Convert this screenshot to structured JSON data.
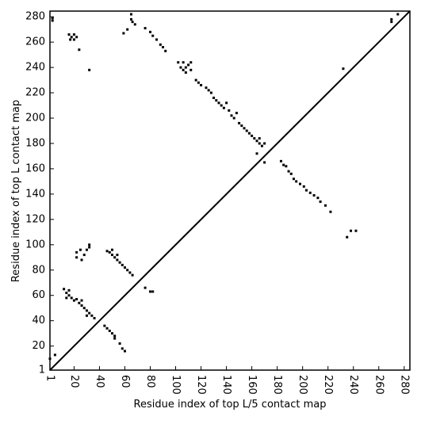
{
  "chart_data": {
    "type": "scatter",
    "xlabel": "Residue index of top L/5 contact map",
    "ylabel": "Residue index of top L contact map",
    "xlim": [
      1,
      284.5
    ],
    "ylim": [
      1,
      284.5
    ],
    "xticks": [
      1,
      20,
      40,
      60,
      80,
      100,
      120,
      140,
      160,
      180,
      200,
      220,
      240,
      260,
      280
    ],
    "yticks": [
      1,
      20,
      40,
      60,
      80,
      100,
      120,
      140,
      160,
      180,
      200,
      220,
      240,
      260,
      280
    ],
    "diagonal": true,
    "color": "#000000",
    "x": [
      3,
      3,
      16,
      18,
      20,
      22,
      20,
      17,
      24,
      32,
      59,
      62,
      65,
      65,
      66,
      68,
      76,
      80,
      82,
      85,
      88,
      90,
      92,
      102,
      104,
      106,
      108,
      110,
      112,
      112,
      106,
      108,
      116,
      118,
      120,
      124,
      126,
      128,
      130,
      132,
      134,
      136,
      138,
      140,
      142,
      144,
      146,
      148,
      150,
      152,
      154,
      156,
      158,
      160,
      162,
      164,
      166,
      168,
      170,
      166,
      164,
      170,
      183,
      185,
      187,
      189,
      191,
      193,
      195,
      198,
      201,
      203,
      206,
      209,
      212,
      214,
      218,
      222,
      235,
      238,
      242,
      232,
      270,
      270,
      275,
      22,
      22,
      25,
      26,
      28,
      30,
      32,
      32,
      46,
      48,
      50,
      52,
      54,
      56,
      58,
      60,
      62,
      64,
      66,
      50,
      54,
      12,
      14,
      14,
      16,
      18,
      20,
      22,
      24,
      26,
      28,
      30,
      32,
      34,
      36,
      16,
      26,
      30,
      44,
      46,
      48,
      50,
      52,
      56,
      58,
      60,
      52,
      76,
      80,
      82,
      1,
      5
    ],
    "values": [
      279,
      277,
      266,
      264,
      262,
      264,
      266,
      262,
      254,
      238,
      267,
      270,
      278,
      282,
      276,
      274,
      271,
      268,
      265,
      262,
      258,
      256,
      253,
      244,
      240,
      238,
      236,
      242,
      244,
      238,
      244,
      240,
      230,
      228,
      226,
      224,
      222,
      220,
      216,
      214,
      212,
      210,
      208,
      212,
      206,
      202,
      200,
      204,
      196,
      194,
      192,
      190,
      188,
      186,
      184,
      182,
      180,
      178,
      180,
      184,
      172,
      165,
      166,
      163,
      162,
      158,
      156,
      152,
      150,
      148,
      146,
      143,
      141,
      139,
      137,
      134,
      131,
      126,
      106,
      111,
      111,
      239,
      276,
      278,
      282,
      94,
      90,
      96,
      88,
      92,
      96,
      100,
      98,
      95,
      94,
      92,
      90,
      88,
      86,
      84,
      82,
      80,
      78,
      76,
      96,
      92,
      65,
      62,
      58,
      60,
      58,
      56,
      57,
      54,
      52,
      50,
      48,
      46,
      44,
      42,
      64,
      56,
      44,
      36,
      34,
      32,
      30,
      28,
      22,
      18,
      16,
      26,
      66,
      63,
      63,
      10,
      13
    ]
  }
}
